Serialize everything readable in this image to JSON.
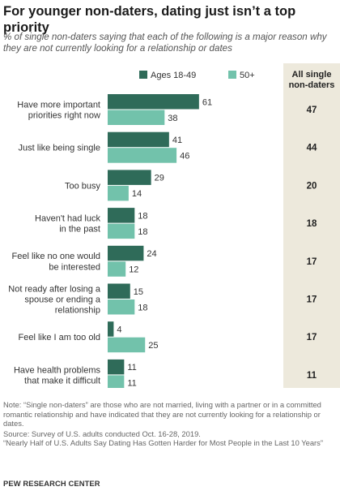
{
  "title": "For younger non-daters, dating just isn’t a top priority",
  "subtitle": "% of single non-daters saying that each of the following is a major reason why they are not currently looking for a relationship or dates",
  "colors": {
    "dark": "#2f6b59",
    "light": "#72c2ab",
    "total_bg": "#ede9dc"
  },
  "chart_data": {
    "type": "bar",
    "orientation": "horizontal",
    "categories": [
      [
        "Have more important",
        "priorities right now"
      ],
      [
        "Just like being single"
      ],
      [
        "Too busy"
      ],
      [
        "Haven't had luck",
        "in the past"
      ],
      [
        "Feel like no one would",
        "be interested"
      ],
      [
        "Not ready after losing a",
        "spouse or ending a",
        "relationship"
      ],
      [
        "Feel like I am too old"
      ],
      [
        "Have health problems",
        "that make it difficult"
      ]
    ],
    "series": [
      {
        "name": "Ages 18-49",
        "values": [
          61,
          41,
          29,
          18,
          24,
          15,
          4,
          11
        ]
      },
      {
        "name": "50+",
        "values": [
          38,
          46,
          14,
          18,
          12,
          18,
          25,
          11
        ]
      }
    ],
    "total_column": {
      "header": [
        "All single",
        "non-daters"
      ],
      "values": [
        "47",
        "44",
        "20",
        "18",
        "17",
        "17",
        "17",
        "11"
      ]
    },
    "legend": "top",
    "grid": false
  },
  "footer": {
    "note": "Note: “Single non-daters” are those who are not married, living with a partner or in a committed romantic relationship and have indicated that they are not currently looking for a relationship or dates.",
    "source": "Source: Survey of U.S. adults conducted Oct. 16-28, 2019.",
    "report": "“Nearly Half of U.S. Adults Say Dating Has Gotten Harder for Most People in the Last 10 Years”",
    "brand": "PEW RESEARCH CENTER"
  }
}
